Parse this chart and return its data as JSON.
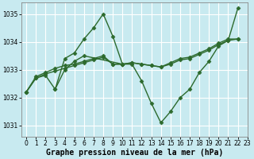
{
  "background_color": "#c8eaf0",
  "grid_color": "#ffffff",
  "line_color": "#2d6a2d",
  "marker": "D",
  "markersize": 2.5,
  "linewidth": 1.0,
  "title": "Graphe pression niveau de la mer (hPa)",
  "title_fontsize": 7,
  "xlim": [
    -0.5,
    23
  ],
  "ylim": [
    1030.6,
    1035.4
  ],
  "yticks": [
    1031,
    1032,
    1033,
    1034,
    1035
  ],
  "xticks": [
    0,
    1,
    2,
    3,
    4,
    5,
    6,
    7,
    8,
    9,
    10,
    11,
    12,
    13,
    14,
    15,
    16,
    17,
    18,
    19,
    20,
    21,
    22,
    23
  ],
  "series": [
    {
      "x": [
        0,
        1,
        2,
        3,
        4,
        5,
        6,
        7,
        8,
        9,
        10,
        11,
        12,
        13,
        14,
        15,
        16,
        17,
        18,
        19,
        20,
        21,
        22
      ],
      "y": [
        1032.2,
        1032.7,
        1032.8,
        1032.3,
        1033.4,
        1033.6,
        1034.1,
        1034.5,
        1035.0,
        1034.2,
        1033.2,
        1033.2,
        1032.6,
        1031.8,
        1031.1,
        1031.5,
        1032.0,
        1032.3,
        1032.9,
        1033.3,
        1033.85,
        1034.05,
        1035.2
      ]
    },
    {
      "x": [
        0,
        1,
        2,
        3,
        4,
        5,
        6,
        7,
        8,
        9,
        10,
        11,
        12,
        13,
        14,
        15,
        16,
        17,
        18,
        19,
        20,
        21,
        22
      ],
      "y": [
        1032.2,
        1032.7,
        1032.85,
        1032.95,
        1033.05,
        1033.15,
        1033.25,
        1033.35,
        1033.45,
        1033.2,
        1033.2,
        1033.25,
        1033.2,
        1033.15,
        1033.1,
        1033.2,
        1033.35,
        1033.4,
        1033.55,
        1033.7,
        1033.9,
        1034.05,
        1034.1
      ]
    },
    {
      "x": [
        0,
        1,
        2,
        3,
        4,
        5,
        6,
        7,
        8,
        9,
        10,
        11,
        12,
        13,
        14,
        15,
        16,
        17,
        18,
        19,
        20,
        21,
        22
      ],
      "y": [
        1032.2,
        1032.75,
        1032.9,
        1033.05,
        1033.15,
        1033.2,
        1033.3,
        1033.4,
        1033.5,
        1033.2,
        1033.2,
        1033.25,
        1033.2,
        1033.15,
        1033.1,
        1033.25,
        1033.4,
        1033.45,
        1033.6,
        1033.75,
        1033.95,
        1034.1,
        1034.1
      ]
    },
    {
      "x": [
        3,
        4,
        5,
        6,
        10
      ],
      "y": [
        1032.3,
        1033.0,
        1033.3,
        1033.5,
        1033.2
      ]
    }
  ]
}
